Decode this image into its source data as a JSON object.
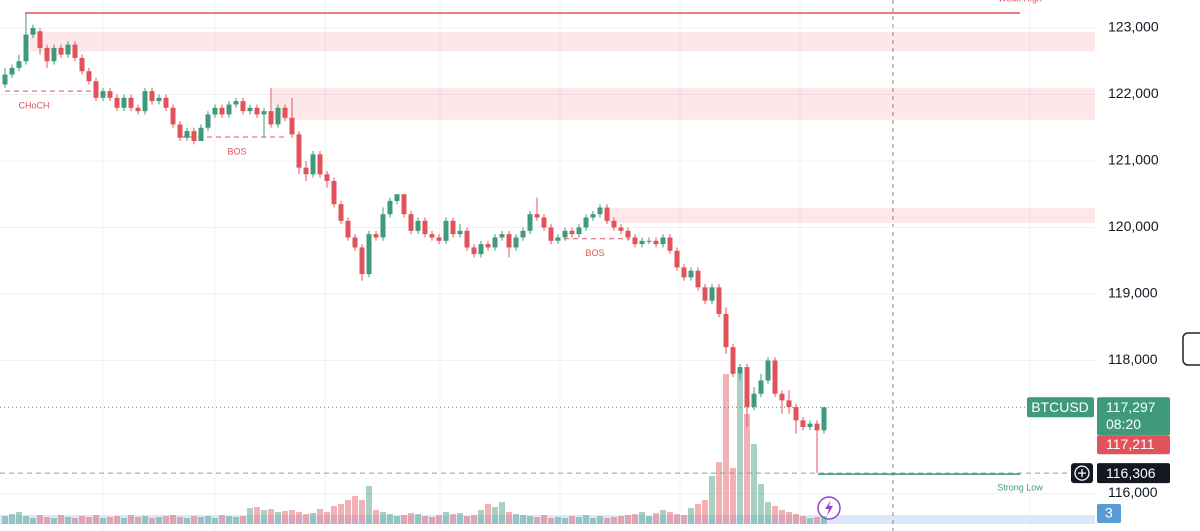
{
  "chart_data": {
    "type": "candlestick",
    "symbol": "BTCUSD",
    "ylim": [
      115436,
      123421
    ],
    "yticks": [
      {
        "value": 123000,
        "label": "123,000"
      },
      {
        "value": 122000,
        "label": "122,000"
      },
      {
        "value": 121000,
        "label": "121,000"
      },
      {
        "value": 120000,
        "label": "120,000"
      },
      {
        "value": 119000,
        "label": "119,000"
      },
      {
        "value": 118000,
        "label": "118,000"
      },
      {
        "value": 116000,
        "label": "116,000"
      }
    ],
    "grid": true,
    "up_color": "#3f9a7c",
    "down_color": "#e0535b",
    "open": [
      122150,
      122300,
      122400,
      122500,
      122900,
      122950,
      122700,
      122500,
      122700,
      122600,
      122750,
      122550,
      122350,
      122200,
      121950,
      122050,
      121950,
      121800,
      121950,
      121800,
      121750,
      122050,
      121900,
      121950,
      121800,
      121550,
      121350,
      121450,
      121300,
      121500,
      121700,
      121800,
      121700,
      121850,
      121900,
      121750,
      121800,
      121700,
      121750,
      121550,
      121800,
      121650,
      121400,
      120900,
      120800,
      121100,
      120800,
      120700,
      120350,
      120100,
      119850,
      119700,
      119300,
      119900,
      119850,
      120200,
      120400,
      120500,
      120200,
      119950,
      120100,
      119900,
      119850,
      119800,
      120100,
      119900,
      119950,
      119700,
      119600,
      119750,
      119700,
      119850,
      119900,
      119700,
      119850,
      119950,
      120200,
      120150,
      120000,
      119800,
      119850,
      119950,
      119900,
      120000,
      120150,
      120200,
      120300,
      120100,
      120000,
      119950,
      119850,
      119750,
      119800,
      119800,
      119750,
      119850,
      119650,
      119400,
      119250,
      119350,
      119100,
      118900,
      119100,
      118700,
      118200,
      117800,
      117900,
      117300,
      117500,
      117700,
      118000,
      117500,
      117400,
      117300,
      117100,
      117000,
      117050,
      116950
    ],
    "high": [
      122400,
      122450,
      122600,
      123225,
      123050,
      123000,
      122750,
      122750,
      122750,
      122800,
      122800,
      122600,
      122400,
      122250,
      122100,
      122100,
      122000,
      122000,
      122000,
      121850,
      122100,
      122100,
      122000,
      122000,
      121850,
      121600,
      121500,
      121500,
      121550,
      121750,
      121850,
      121850,
      121900,
      121950,
      121950,
      121850,
      121850,
      121800,
      122100,
      121850,
      121850,
      121950,
      121450,
      121000,
      121150,
      121150,
      120850,
      120750,
      120400,
      120150,
      119900,
      119750,
      119950,
      119950,
      120300,
      120450,
      120500,
      120500,
      120250,
      120150,
      120150,
      119950,
      119900,
      120150,
      120150,
      120050,
      120000,
      119750,
      119800,
      119800,
      119900,
      119950,
      119950,
      119900,
      120000,
      120250,
      120450,
      120200,
      120050,
      119900,
      120000,
      120000,
      120050,
      120200,
      120250,
      120350,
      120350,
      120150,
      120050,
      120000,
      119900,
      119850,
      119850,
      119850,
      119900,
      119900,
      119700,
      119450,
      119400,
      119400,
      119150,
      119150,
      119150,
      118800,
      118250,
      117950,
      117950,
      117600,
      117800,
      118050,
      118050,
      117550,
      117550,
      117350,
      117150,
      117100,
      117100,
      117297
    ],
    "low": [
      122100,
      122250,
      122350,
      122450,
      122850,
      122600,
      122400,
      122450,
      122550,
      122550,
      122500,
      122300,
      122150,
      121900,
      121900,
      121900,
      121750,
      121750,
      121750,
      121700,
      121700,
      121850,
      121850,
      121750,
      121500,
      121300,
      121300,
      121250,
      121300,
      121450,
      121650,
      121650,
      121650,
      121800,
      121700,
      121700,
      121650,
      121350,
      121500,
      121500,
      121600,
      121350,
      120800,
      120700,
      120750,
      120750,
      120600,
      120300,
      120050,
      119800,
      119650,
      119200,
      119250,
      119800,
      119800,
      120150,
      120350,
      120150,
      119900,
      119900,
      119850,
      119800,
      119750,
      119750,
      119850,
      119850,
      119650,
      119550,
      119550,
      119650,
      119650,
      119800,
      119550,
      119650,
      119800,
      119900,
      120100,
      119950,
      119750,
      119750,
      119800,
      119850,
      119850,
      119950,
      120100,
      120150,
      120050,
      119950,
      119900,
      119800,
      119700,
      119700,
      119750,
      119700,
      119700,
      119600,
      119350,
      119200,
      119200,
      119050,
      118850,
      118850,
      118650,
      118100,
      117750,
      117700,
      117000,
      117250,
      117450,
      117650,
      117450,
      117200,
      117200,
      116900,
      116950,
      116950,
      116306,
      116900
    ],
    "close": [
      122300,
      122400,
      122500,
      122900,
      123000,
      122700,
      122500,
      122700,
      122600,
      122750,
      122550,
      122350,
      122200,
      121950,
      122050,
      121950,
      121800,
      121950,
      121800,
      121750,
      122050,
      121900,
      121950,
      121800,
      121550,
      121350,
      121450,
      121300,
      121500,
      121700,
      121800,
      121700,
      121850,
      121900,
      121750,
      121800,
      121700,
      121750,
      121550,
      121800,
      121650,
      121400,
      120900,
      120800,
      121100,
      120800,
      120700,
      120350,
      120100,
      119850,
      119700,
      119300,
      119900,
      119850,
      120200,
      120400,
      120500,
      120200,
      119950,
      120100,
      119900,
      119850,
      119800,
      120100,
      119900,
      119950,
      119700,
      119600,
      119750,
      119700,
      119850,
      119900,
      119700,
      119850,
      119950,
      120200,
      120150,
      120000,
      119800,
      119850,
      119950,
      119900,
      120000,
      120150,
      120200,
      120300,
      120100,
      120000,
      119950,
      119850,
      119750,
      119800,
      119800,
      119750,
      119850,
      119650,
      119400,
      119250,
      119350,
      119100,
      118900,
      119100,
      118700,
      118200,
      117800,
      117900,
      117300,
      117500,
      117700,
      118000,
      117500,
      117400,
      117300,
      117100,
      117000,
      117050,
      116950,
      117297
    ],
    "volume": [
      8,
      10,
      12,
      8,
      6,
      9,
      7,
      6,
      9,
      7,
      6,
      8,
      7,
      9,
      6,
      7,
      8,
      6,
      9,
      7,
      8,
      6,
      7,
      8,
      9,
      7,
      6,
      8,
      7,
      8,
      6,
      9,
      8,
      7,
      8,
      16,
      17,
      14,
      15,
      12,
      13,
      14,
      12,
      10,
      11,
      15,
      12,
      18,
      20,
      24,
      28,
      24,
      38,
      14,
      12,
      10,
      8,
      9,
      11,
      10,
      8,
      7,
      9,
      12,
      10,
      11,
      8,
      9,
      14,
      20,
      17,
      22,
      12,
      10,
      9,
      8,
      7,
      9,
      6,
      7,
      6,
      8,
      7,
      9,
      6,
      8,
      6,
      7,
      8,
      9,
      10,
      12,
      8,
      11,
      14,
      12,
      10,
      9,
      16,
      20,
      24,
      48,
      62,
      150,
      56,
      150,
      110,
      80,
      40,
      22,
      18,
      14,
      12,
      10,
      8,
      6,
      7,
      8
    ],
    "volume_lim": [
      0,
      160
    ],
    "zones": [
      {
        "from": 122650,
        "to": 122940
      },
      {
        "from": 121620,
        "to": 122100
      },
      {
        "from": 120070,
        "to": 120290
      }
    ],
    "weak_high": {
      "label": "Weak High",
      "value": 123225
    },
    "strong_low": {
      "label": "Strong Low",
      "value": 116306
    },
    "structure": [
      {
        "label": "CHoCH",
        "value": 122050
      },
      {
        "label": "BOS",
        "value": 121360
      },
      {
        "label": "BOS",
        "value": 119830
      }
    ],
    "last_price": {
      "value": 117297,
      "label": "117,297"
    },
    "countdown": "08:20",
    "bid_price": {
      "value": 117211,
      "label": "117,211"
    },
    "cursor_price": {
      "value": 116306,
      "label": "116,306"
    },
    "badge": "3"
  }
}
